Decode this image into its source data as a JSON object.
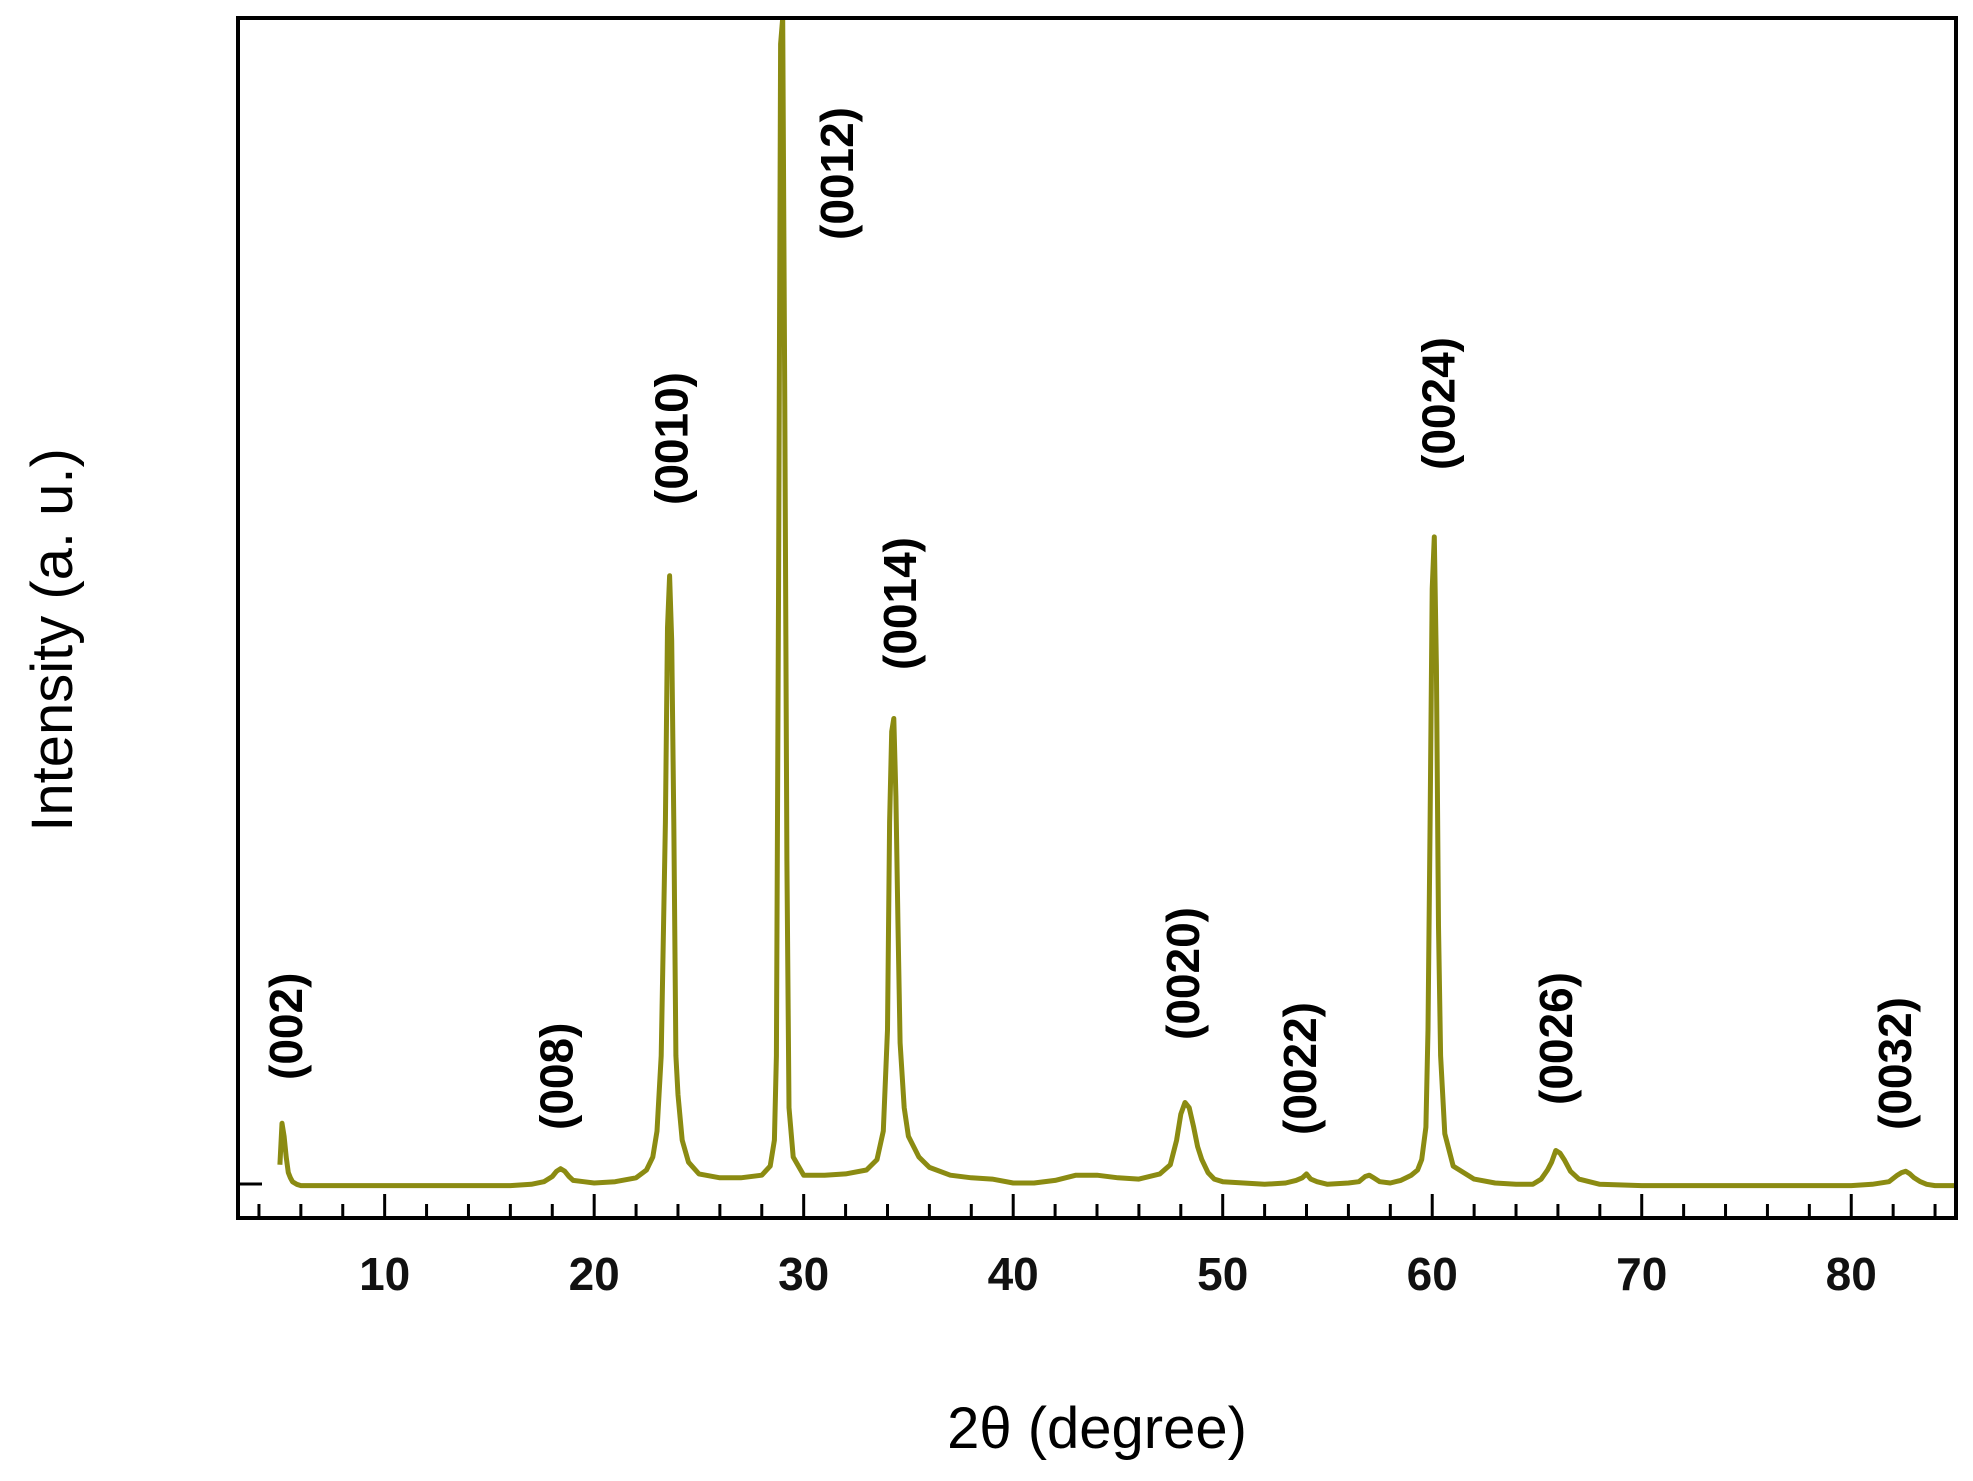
{
  "chart_data": {
    "type": "line",
    "title": "",
    "xlabel": "2θ (degree)",
    "ylabel": "Intensity (a. u.)",
    "xlim": [
      3,
      85
    ],
    "ylim": [
      -2.5,
      90
    ],
    "x_ticks": [
      10,
      20,
      30,
      40,
      50,
      60,
      70,
      80
    ],
    "y_ticks_labeled": false,
    "grid": false,
    "legend": "none",
    "series_color": "#8B8B12",
    "series": [
      {
        "x": [
          5.0,
          5.1,
          5.2,
          5.3,
          5.4,
          5.5,
          5.6,
          5.8,
          6.0,
          7.0,
          8.0,
          9.0,
          10.0,
          11.0,
          12.0,
          13.0,
          14.0,
          15.0,
          16.0,
          17.0,
          17.6,
          18.0,
          18.2,
          18.4,
          18.6,
          18.8,
          19.0,
          19.5,
          20.0,
          21.0,
          22.0,
          22.5,
          22.8,
          23.0,
          23.2,
          23.4,
          23.5,
          23.6,
          23.7,
          23.8,
          23.9,
          24.0,
          24.2,
          24.5,
          25.0,
          26.0,
          27.0,
          28.0,
          28.4,
          28.6,
          28.7,
          28.8,
          28.9,
          29.0,
          29.1,
          29.2,
          29.3,
          29.5,
          30.0,
          31.0,
          32.0,
          33.0,
          33.5,
          33.8,
          34.0,
          34.1,
          34.2,
          34.3,
          34.4,
          34.5,
          34.6,
          34.8,
          35.0,
          35.5,
          36.0,
          37.0,
          38.0,
          39.0,
          40.0,
          41.0,
          42.0,
          43.0,
          44.0,
          45.0,
          46.0,
          47.0,
          47.5,
          47.8,
          48.0,
          48.2,
          48.4,
          48.6,
          48.8,
          49.0,
          49.3,
          49.6,
          50.0,
          51.0,
          52.0,
          53.0,
          53.5,
          53.8,
          54.0,
          54.2,
          54.5,
          55.0,
          56.0,
          56.5,
          56.8,
          57.0,
          57.2,
          57.5,
          58.0,
          58.5,
          59.0,
          59.3,
          59.5,
          59.7,
          59.8,
          59.9,
          60.0,
          60.1,
          60.2,
          60.3,
          60.4,
          60.6,
          61.0,
          62.0,
          63.0,
          64.0,
          64.8,
          65.2,
          65.5,
          65.7,
          65.9,
          66.1,
          66.3,
          66.6,
          67.0,
          68.0,
          70.0,
          72.0,
          74.0,
          76.0,
          78.0,
          80.0,
          81.0,
          81.8,
          82.2,
          82.4,
          82.6,
          82.8,
          83.0,
          83.3,
          83.6,
          84.0,
          85.0
        ],
        "y": [
          1.6,
          4.8,
          3.8,
          2.2,
          1.0,
          0.6,
          0.3,
          0.1,
          0.0,
          0.0,
          0.0,
          0.0,
          0.0,
          0.0,
          0.0,
          0.0,
          0.0,
          0.0,
          0.0,
          0.1,
          0.3,
          0.7,
          1.1,
          1.3,
          1.1,
          0.7,
          0.4,
          0.3,
          0.2,
          0.3,
          0.6,
          1.2,
          2.2,
          4.2,
          10.0,
          28.0,
          43.0,
          47.0,
          42.0,
          28.0,
          10.0,
          7.0,
          3.5,
          1.8,
          0.9,
          0.6,
          0.6,
          0.8,
          1.5,
          3.5,
          10.0,
          45.0,
          88.0,
          90.0,
          60.0,
          25.0,
          6.0,
          2.2,
          0.8,
          0.8,
          0.9,
          1.2,
          2.0,
          4.2,
          12.0,
          28.0,
          35.0,
          36.0,
          30.0,
          20.0,
          11.0,
          6.0,
          3.8,
          2.2,
          1.4,
          0.8,
          0.6,
          0.5,
          0.2,
          0.2,
          0.4,
          0.8,
          0.8,
          0.6,
          0.5,
          0.9,
          1.6,
          3.5,
          5.5,
          6.4,
          6.0,
          4.6,
          3.0,
          2.0,
          1.0,
          0.5,
          0.3,
          0.2,
          0.1,
          0.2,
          0.4,
          0.6,
          0.9,
          0.5,
          0.3,
          0.1,
          0.2,
          0.3,
          0.7,
          0.8,
          0.6,
          0.3,
          0.2,
          0.4,
          0.8,
          1.2,
          2.0,
          4.5,
          12.0,
          28.0,
          46.0,
          50.0,
          40.0,
          20.0,
          10.0,
          4.0,
          1.5,
          0.5,
          0.2,
          0.1,
          0.1,
          0.5,
          1.2,
          1.8,
          2.7,
          2.5,
          2.0,
          1.1,
          0.5,
          0.1,
          0.0,
          0.0,
          0.0,
          0.0,
          0.0,
          0.0,
          0.1,
          0.3,
          0.8,
          1.0,
          1.1,
          0.9,
          0.6,
          0.3,
          0.1,
          0.0,
          0.0
        ]
      }
    ],
    "annotations": [
      {
        "text": "(002)",
        "x": 5.3
      },
      {
        "text": "(008)",
        "x": 18.2
      },
      {
        "text": "(0010)",
        "x": 23.7
      },
      {
        "text": "(0012)",
        "x": 31.6
      },
      {
        "text": "(0014)",
        "x": 34.6
      },
      {
        "text": "(0020)",
        "x": 48.1
      },
      {
        "text": "(0022)",
        "x": 53.7
      },
      {
        "text": "(0024)",
        "x": 60.3
      },
      {
        "text": "(0026)",
        "x": 65.9
      },
      {
        "text": "(0032)",
        "x": 82.1
      }
    ]
  }
}
